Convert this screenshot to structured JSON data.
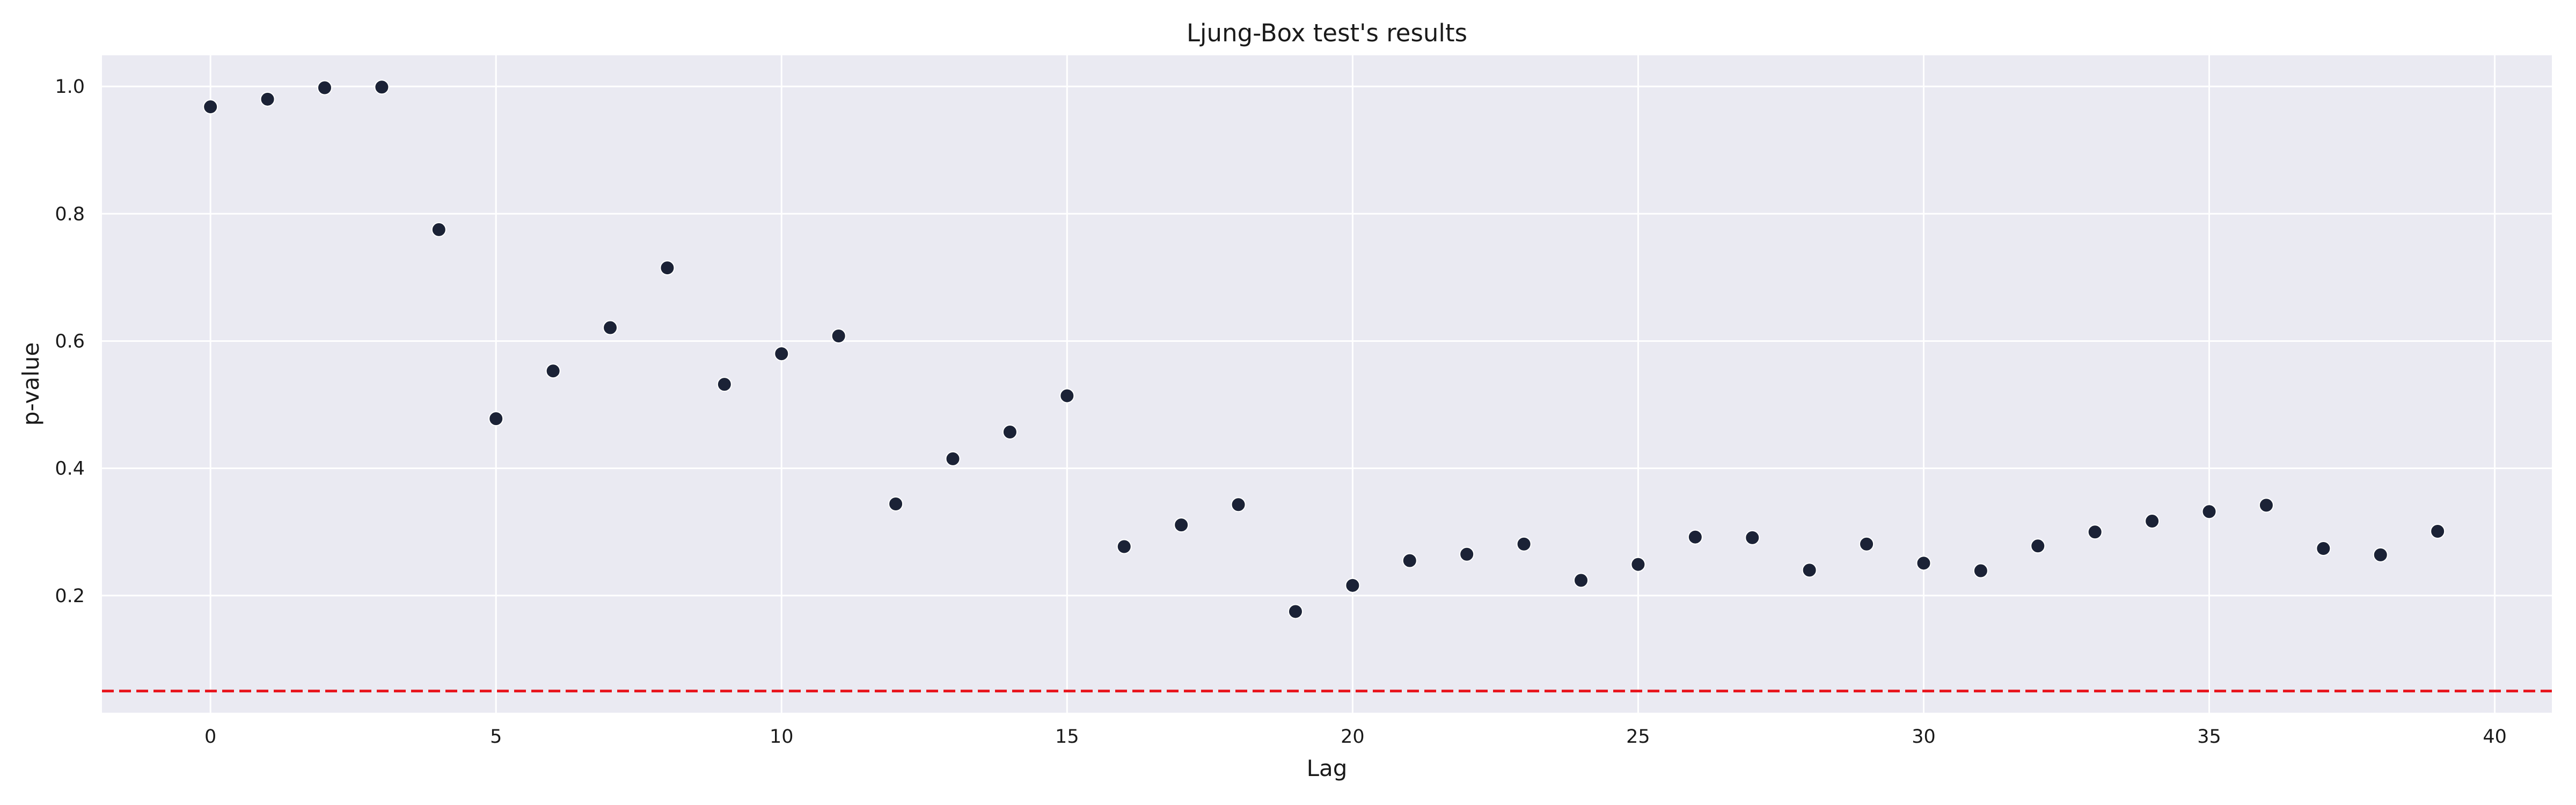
{
  "chart_data": {
    "type": "scatter",
    "title": "Ljung-Box test's results",
    "xlabel": "Lag",
    "ylabel": "p-value",
    "xlim": [
      -1.9,
      41.0
    ],
    "ylim": [
      0.016,
      1.049
    ],
    "x_ticks": [
      0,
      5,
      10,
      15,
      20,
      25,
      30,
      35,
      40
    ],
    "y_ticks": [
      0.2,
      0.4,
      0.6,
      0.8,
      1.0
    ],
    "x_tick_labels": [
      "0",
      "5",
      "10",
      "15",
      "20",
      "25",
      "30",
      "35",
      "40"
    ],
    "y_tick_labels": [
      "0.2",
      "0.4",
      "0.6",
      "0.8",
      "1.0"
    ],
    "grid": true,
    "background_color": "#eaeaf2",
    "grid_color": "#ffffff",
    "point_color": "#1b2236",
    "reference_line": {
      "y": 0.05,
      "style": "dashed",
      "color": "#e8141c"
    },
    "x": [
      0,
      1,
      2,
      3,
      4,
      5,
      6,
      7,
      8,
      9,
      10,
      11,
      12,
      13,
      14,
      15,
      16,
      17,
      18,
      19,
      20,
      21,
      22,
      23,
      24,
      25,
      26,
      27,
      28,
      29,
      30,
      31,
      32,
      33,
      34,
      35,
      36,
      37,
      38,
      39
    ],
    "y": [
      0.968,
      0.98,
      0.998,
      0.999,
      0.775,
      0.478,
      0.553,
      0.621,
      0.715,
      0.532,
      0.58,
      0.608,
      0.344,
      0.415,
      0.457,
      0.514,
      0.277,
      0.311,
      0.343,
      0.175,
      0.216,
      0.255,
      0.265,
      0.281,
      0.224,
      0.249,
      0.292,
      0.291,
      0.24,
      0.281,
      0.251,
      0.239,
      0.278,
      0.3,
      0.317,
      0.332,
      0.342,
      0.274,
      0.264,
      0.301
    ]
  }
}
